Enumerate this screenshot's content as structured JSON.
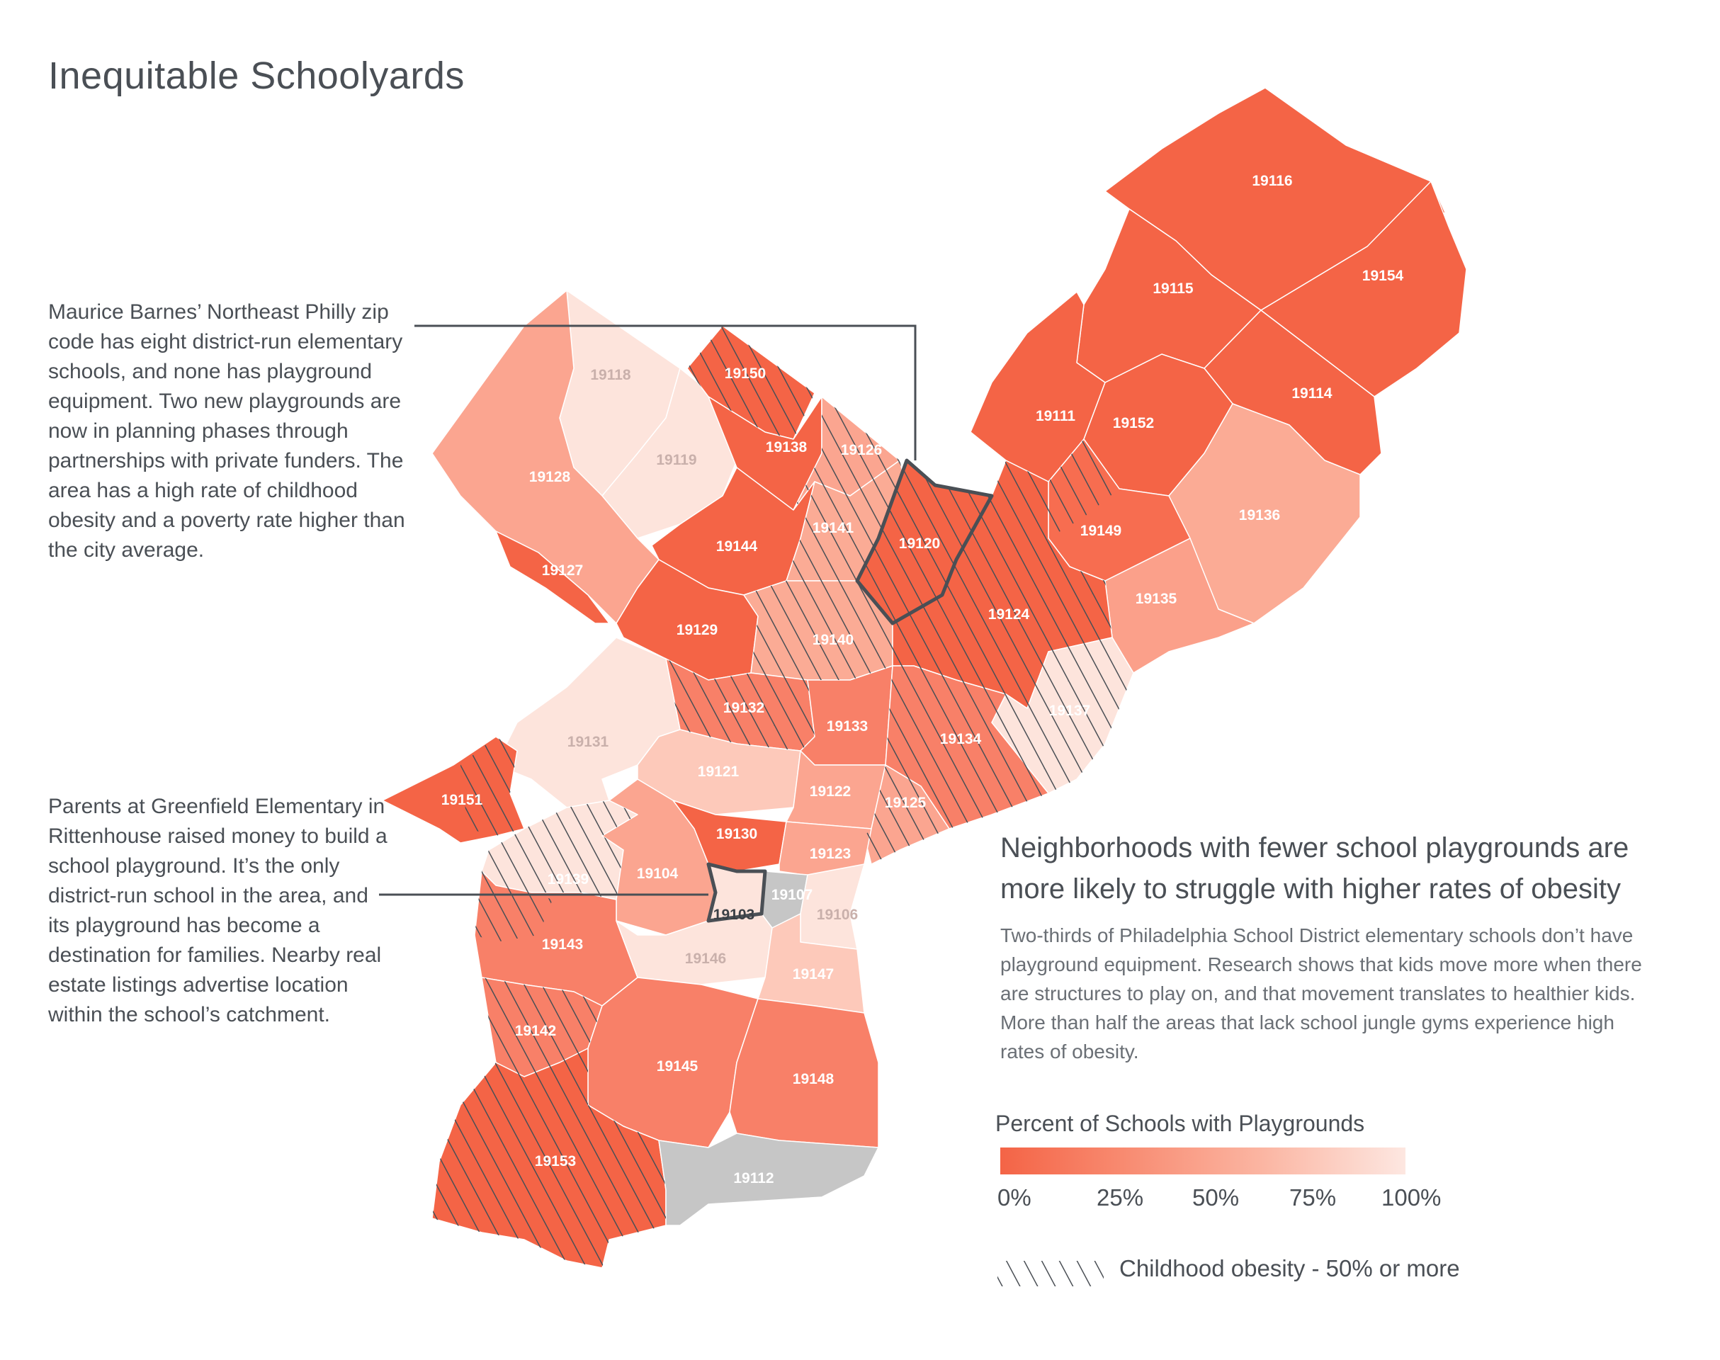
{
  "title": "Inequitable Schoolyards",
  "annotation_northeast": "Maurice Barnes’ Northeast Philly zip code has eight district-run elementary schools, and none has playground equipment. Two new playgrounds are now in planning phases through partnerships with private funders.  The area has a high rate of childhood obesity and a poverty rate higher than the city average.",
  "annotation_rittenhouse": "Parents at Greenfield Elementary in Rittenhouse raised money to build a school playground. It’s the only district-run school in the area, and its playground has become a destination for families. Nearby real estate listings advertise location within the school’s catchment.",
  "headline": "Neighborhoods with fewer school playgrounds are more likely to struggle with higher rates of obesity",
  "body": "Two-thirds of Philadelphia School District elementary schools don’t have playground equipment. Research shows that kids move more when there are structures to play on, and that movement translates to healthier kids. More than half the areas that lack school jungle gyms experience high rates of obesity.",
  "legend": {
    "title": "Percent of Schools with Playgrounds",
    "ticks": [
      "0%",
      "25%",
      "50%",
      "75%",
      "100%"
    ],
    "hatch_label": "Childhood obesity - 50% or more",
    "colors": {
      "low": "#f46446",
      "mid": "#fbb6a3",
      "high": "#fde7e1",
      "no_data": "#c6c6c6"
    }
  },
  "zips": {
    "z19116": "19116",
    "z19154": "19154",
    "z19115": "19115",
    "z19114": "19114",
    "z19111": "19111",
    "z19152": "19152",
    "z19136": "19136",
    "z19149": "19149",
    "z19135": "19135",
    "z19118": "19118",
    "z19150": "19150",
    "z19119": "19119",
    "z19128": "19128",
    "z19138": "19138",
    "z19126": "19126",
    "z19141": "19141",
    "z19120": "19120",
    "z19144": "19144",
    "z19127": "19127",
    "z19124": "19124",
    "z19129": "19129",
    "z19140": "19140",
    "z19137": "19137",
    "z19132": "19132",
    "z19133": "19133",
    "z19134": "19134",
    "z19131": "19131",
    "z19121": "19121",
    "z19151": "19151",
    "z19122": "19122",
    "z19125": "19125",
    "z19130": "19130",
    "z19123": "19123",
    "z19139": "19139",
    "z19104": "19104",
    "z19107": "19107",
    "z19103": "19103",
    "z19106": "19106",
    "z19143": "19143",
    "z19146": "19146",
    "z19147": "19147",
    "z19142": "19142",
    "z19145": "19145",
    "z19148": "19148",
    "z19153": "19153",
    "z19112": "19112"
  }
}
